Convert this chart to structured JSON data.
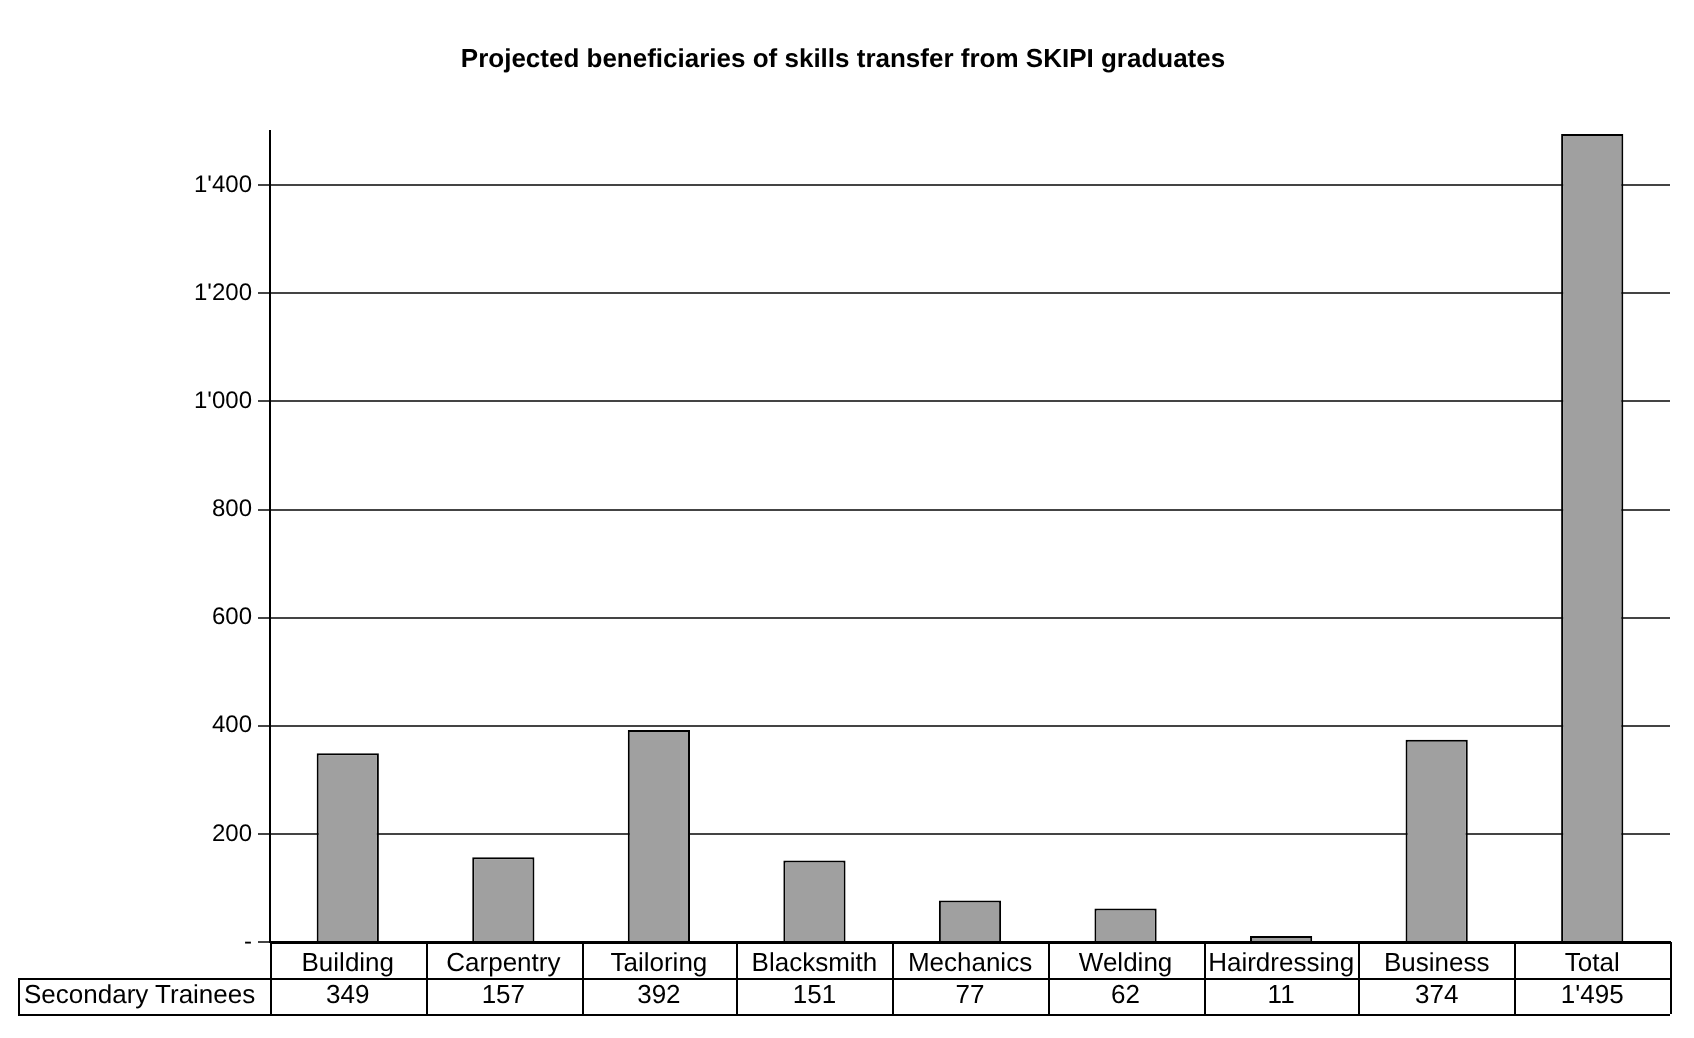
{
  "chart_data": {
    "type": "bar",
    "title": "Projected beneficiaries of skills transfer from SKIPI graduates",
    "categories": [
      "Building",
      "Carpentry",
      "Tailoring",
      "Blacksmith",
      "Mechanics",
      "Welding",
      "Hairdressing",
      "Business",
      "Total"
    ],
    "series": [
      {
        "name": "Secondary Trainees",
        "color": "#a0a0a0",
        "values": [
          349,
          157,
          392,
          151,
          77,
          62,
          11,
          374,
          1495
        ],
        "value_labels": [
          "349",
          "157",
          "392",
          "151",
          "77",
          "62",
          "11",
          "374",
          "1'495"
        ]
      }
    ],
    "ylim": [
      0,
      1500
    ],
    "yticks": [
      {
        "value": 0,
        "label": "-"
      },
      200,
      400,
      600,
      800,
      {
        "value": 1000,
        "label": "1'000"
      },
      {
        "value": 1200,
        "label": "1'200"
      },
      {
        "value": 1400,
        "label": "1'400"
      }
    ],
    "grid": "y",
    "legend": false
  }
}
